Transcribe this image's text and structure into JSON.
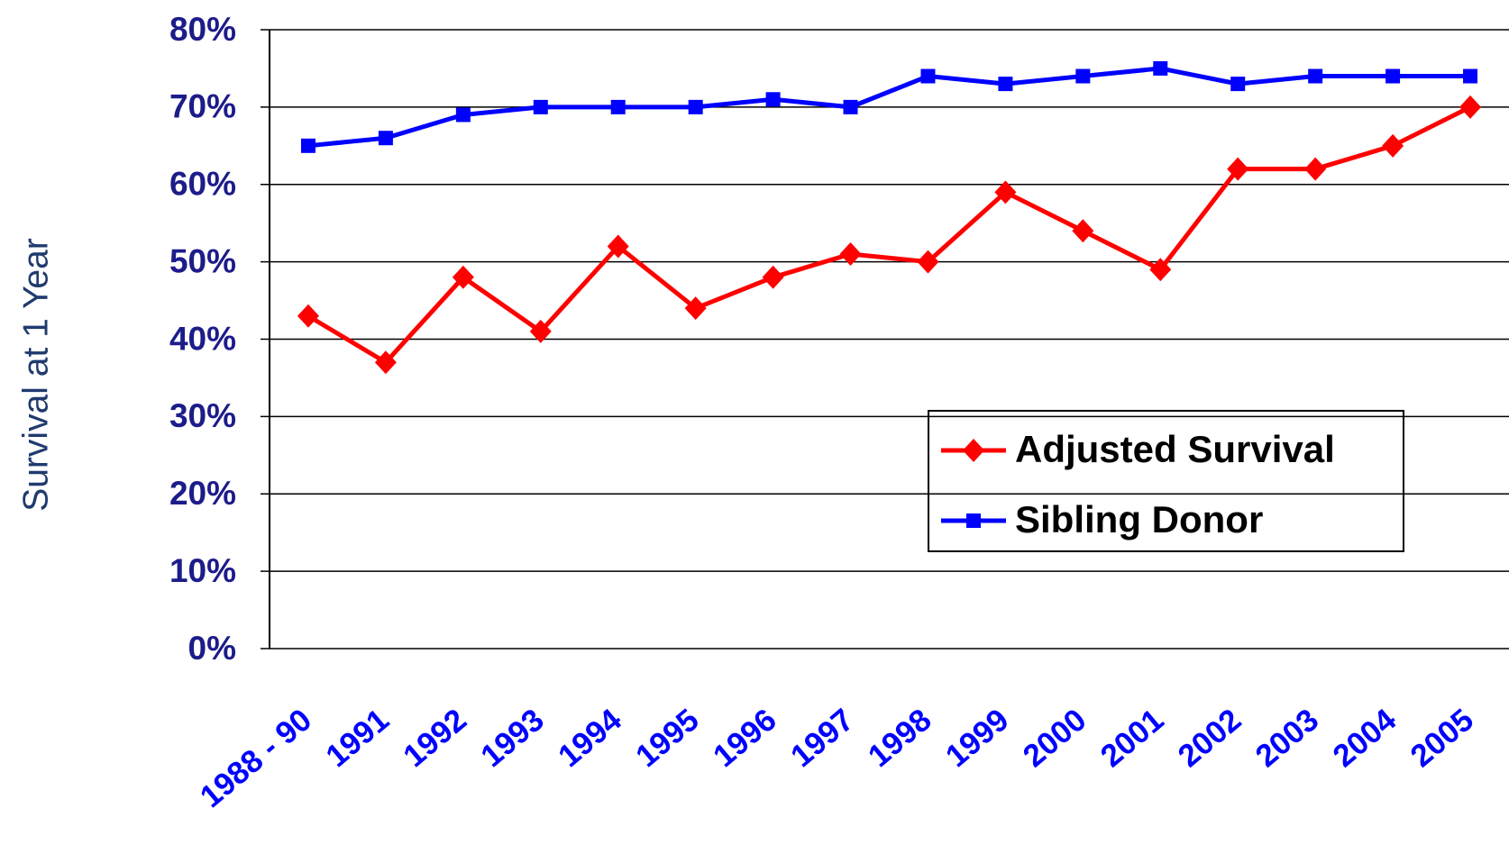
{
  "chart_data": {
    "type": "line",
    "ylabel": "Survival at 1 Year",
    "categories": [
      "1988 - 90",
      "1991",
      "1992",
      "1993",
      "1994",
      "1995",
      "1996",
      "1997",
      "1998",
      "1999",
      "2000",
      "2001",
      "2002",
      "2003",
      "2004",
      "2005"
    ],
    "series": [
      {
        "name": "Adjusted Survival",
        "color": "#ff0000",
        "marker": "diamond",
        "values": [
          43,
          37,
          48,
          41,
          52,
          44,
          48,
          51,
          50,
          59,
          54,
          49,
          62,
          62,
          65,
          70
        ]
      },
      {
        "name": "Sibling Donor",
        "color": "#0000ff",
        "marker": "square",
        "values": [
          65,
          66,
          69,
          70,
          70,
          70,
          71,
          70,
          74,
          73,
          74,
          75,
          73,
          74,
          74,
          74
        ]
      }
    ],
    "ylim": [
      0,
      80
    ],
    "yticks": [
      {
        "value": 0,
        "label": "0%"
      },
      {
        "value": 10,
        "label": "10%"
      },
      {
        "value": 20,
        "label": "20%"
      },
      {
        "value": 30,
        "label": "30%"
      },
      {
        "value": 40,
        "label": "40%"
      },
      {
        "value": 50,
        "label": "50%"
      },
      {
        "value": 60,
        "label": "60%"
      },
      {
        "value": 70,
        "label": "70%"
      },
      {
        "value": 80,
        "label": "80%"
      }
    ],
    "grid": true
  }
}
